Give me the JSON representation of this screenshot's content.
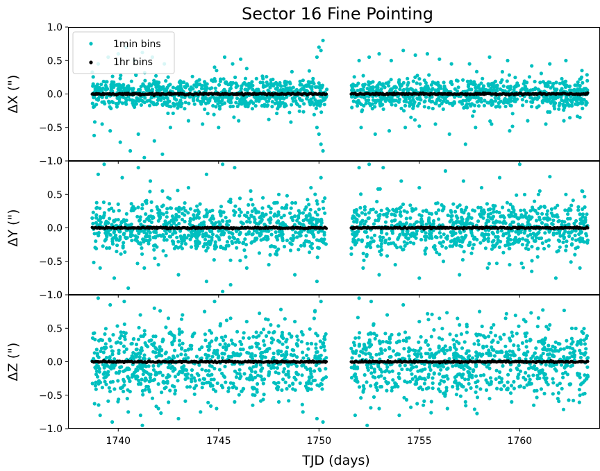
{
  "chart_data": {
    "type": "scatter",
    "title": "Sector 16 Fine Pointing",
    "xlabel": "TJD (days)",
    "xlim": [
      1737.5,
      1764.0
    ],
    "xticks": [
      1740,
      1745,
      1750,
      1755,
      1760
    ],
    "xtick_labels": [
      "1740",
      "1745",
      "1750",
      "1755",
      "1760"
    ],
    "data_gap": [
      1750.4,
      1751.6
    ],
    "x_range_orbit1": [
      1738.7,
      1750.4
    ],
    "x_range_orbit2": [
      1751.6,
      1763.4
    ],
    "legend": {
      "placement": "top-left",
      "entries": [
        {
          "label": "1min bins",
          "color": "#00bfbf"
        },
        {
          "label": "1hr bins",
          "color": "#000000"
        }
      ]
    },
    "colors": {
      "one_min": "#00bfbf",
      "one_hr": "#000000"
    },
    "panels": [
      {
        "ylabel": "ΔX (\")",
        "ylim": [
          -1.0,
          1.0
        ],
        "yticks": [
          -1.0,
          -0.5,
          0.0,
          0.5,
          1.0
        ],
        "ytick_labels": [
          "−1.0",
          "−0.5",
          "0.0",
          "0.5",
          "1.0"
        ],
        "one_min_core_spread": 0.12,
        "one_hr_level": 0.0,
        "outliers": [
          [
            1738.8,
            -0.62
          ],
          [
            1739.2,
            -0.45
          ],
          [
            1739.6,
            -0.55
          ],
          [
            1740.1,
            -0.72
          ],
          [
            1740.6,
            -0.85
          ],
          [
            1741.0,
            -0.6
          ],
          [
            1741.3,
            -0.95
          ],
          [
            1741.8,
            -0.7
          ],
          [
            1742.2,
            -0.9
          ],
          [
            1742.6,
            -0.5
          ],
          [
            1739.0,
            0.45
          ],
          [
            1739.5,
            0.55
          ],
          [
            1740.0,
            0.6
          ],
          [
            1740.4,
            0.7
          ],
          [
            1740.8,
            0.5
          ],
          [
            1741.2,
            0.62
          ],
          [
            1741.7,
            0.55
          ],
          [
            1742.3,
            0.45
          ],
          [
            1744.8,
            0.4
          ],
          [
            1745.3,
            0.55
          ],
          [
            1745.7,
            0.45
          ],
          [
            1746.1,
            0.52
          ],
          [
            1746.4,
            0.38
          ],
          [
            1744.9,
            0.35
          ],
          [
            1743.5,
            -0.4
          ],
          [
            1744.2,
            -0.45
          ],
          [
            1745.0,
            -0.5
          ],
          [
            1746.0,
            -0.4
          ],
          [
            1747.5,
            -0.38
          ],
          [
            1748.6,
            -0.42
          ],
          [
            1749.9,
            0.55
          ],
          [
            1750.0,
            0.7
          ],
          [
            1750.1,
            0.65
          ],
          [
            1750.2,
            0.8
          ],
          [
            1750.0,
            -0.6
          ],
          [
            1750.1,
            -0.75
          ],
          [
            1750.2,
            -0.85
          ],
          [
            1749.9,
            -0.5
          ],
          [
            1752.0,
            0.5
          ],
          [
            1752.5,
            0.55
          ],
          [
            1753.0,
            0.6
          ],
          [
            1753.6,
            0.5
          ],
          [
            1754.2,
            0.65
          ],
          [
            1754.8,
            0.58
          ],
          [
            1755.4,
            0.6
          ],
          [
            1756.0,
            0.52
          ],
          [
            1756.6,
            0.45
          ],
          [
            1757.5,
            0.45
          ],
          [
            1758.5,
            0.55
          ],
          [
            1759.4,
            0.5
          ],
          [
            1760.6,
            0.42
          ],
          [
            1761.5,
            0.45
          ],
          [
            1762.3,
            0.5
          ],
          [
            1763.1,
            0.35
          ],
          [
            1752.1,
            -0.5
          ],
          [
            1752.8,
            -0.6
          ],
          [
            1753.5,
            -0.55
          ],
          [
            1754.3,
            -0.5
          ],
          [
            1755.0,
            -0.48
          ],
          [
            1755.8,
            -0.45
          ],
          [
            1756.5,
            -0.6
          ],
          [
            1757.3,
            -0.75
          ],
          [
            1757.8,
            -0.5
          ],
          [
            1758.6,
            -0.45
          ],
          [
            1759.5,
            -0.55
          ],
          [
            1760.4,
            -0.4
          ],
          [
            1761.3,
            -0.45
          ],
          [
            1762.2,
            -0.4
          ],
          [
            1763.0,
            -0.35
          ]
        ]
      },
      {
        "ylabel": "ΔY (\")",
        "ylim": [
          -1.0,
          1.0
        ],
        "yticks": [
          -1.0,
          -0.5,
          0.0,
          0.5,
          1.0
        ],
        "ytick_labels": [
          "−1.0",
          "−0.5",
          "0.0",
          "0.5",
          "1.0"
        ],
        "one_min_core_spread": 0.2,
        "one_hr_level": 0.0,
        "outliers": [
          [
            1739.0,
            0.8
          ],
          [
            1739.3,
            0.95
          ],
          [
            1740.2,
            0.75
          ],
          [
            1741.0,
            0.9
          ],
          [
            1741.6,
            0.7
          ],
          [
            1742.2,
            0.55
          ],
          [
            1743.5,
            0.6
          ],
          [
            1744.4,
            0.8
          ],
          [
            1745.2,
            0.95
          ],
          [
            1745.8,
            0.9
          ],
          [
            1746.6,
            0.55
          ],
          [
            1748.0,
            0.5
          ],
          [
            1749.6,
            0.6
          ],
          [
            1750.1,
            0.75
          ],
          [
            1739.1,
            -0.6
          ],
          [
            1739.8,
            -0.75
          ],
          [
            1740.5,
            -0.9
          ],
          [
            1741.3,
            -0.6
          ],
          [
            1742.0,
            -0.55
          ],
          [
            1743.0,
            -0.7
          ],
          [
            1744.4,
            -0.8
          ],
          [
            1745.2,
            -0.95
          ],
          [
            1745.6,
            -0.85
          ],
          [
            1746.4,
            -0.6
          ],
          [
            1747.5,
            -0.55
          ],
          [
            1748.8,
            -0.7
          ],
          [
            1749.9,
            -0.8
          ],
          [
            1752.0,
            0.9
          ],
          [
            1752.5,
            0.95
          ],
          [
            1753.2,
            0.9
          ],
          [
            1754.1,
            0.7
          ],
          [
            1755.0,
            0.6
          ],
          [
            1756.3,
            0.85
          ],
          [
            1757.2,
            0.7
          ],
          [
            1758.1,
            0.6
          ],
          [
            1759.0,
            0.75
          ],
          [
            1760.0,
            0.95
          ],
          [
            1761.0,
            0.55
          ],
          [
            1762.3,
            0.5
          ],
          [
            1763.1,
            0.55
          ],
          [
            1752.2,
            -0.6
          ],
          [
            1753.0,
            -0.7
          ],
          [
            1753.8,
            -0.55
          ],
          [
            1755.0,
            -0.75
          ],
          [
            1756.2,
            -0.5
          ],
          [
            1757.0,
            -0.7
          ],
          [
            1758.4,
            -0.6
          ],
          [
            1759.5,
            -0.55
          ],
          [
            1760.6,
            -0.65
          ],
          [
            1761.8,
            -0.75
          ],
          [
            1763.0,
            -0.6
          ]
        ]
      },
      {
        "ylabel": "ΔZ (\")",
        "ylim": [
          -1.0,
          1.0
        ],
        "yticks": [
          -1.0,
          -0.5,
          0.0,
          0.5,
          1.0
        ],
        "ytick_labels": [
          "−1.0",
          "−0.5",
          "0.0",
          "0.5",
          "1.0"
        ],
        "one_min_core_spread": 0.28,
        "one_hr_level": 0.0,
        "outliers": [
          [
            1739.0,
            0.95
          ],
          [
            1739.6,
            0.85
          ],
          [
            1740.3,
            0.9
          ],
          [
            1741.1,
            0.7
          ],
          [
            1741.8,
            0.8
          ],
          [
            1742.5,
            0.65
          ],
          [
            1743.2,
            0.7
          ],
          [
            1744.3,
            0.75
          ],
          [
            1744.8,
            0.9
          ],
          [
            1745.6,
            0.65
          ],
          [
            1746.4,
            0.6
          ],
          [
            1747.6,
            0.55
          ],
          [
            1748.8,
            0.6
          ],
          [
            1749.8,
            0.75
          ],
          [
            1750.1,
            0.9
          ],
          [
            1739.1,
            -0.8
          ],
          [
            1739.7,
            -0.9
          ],
          [
            1740.5,
            -0.75
          ],
          [
            1741.2,
            -0.95
          ],
          [
            1742.0,
            -0.7
          ],
          [
            1743.0,
            -0.85
          ],
          [
            1744.1,
            -0.75
          ],
          [
            1744.9,
            -0.7
          ],
          [
            1745.8,
            -0.6
          ],
          [
            1746.7,
            -0.65
          ],
          [
            1748.0,
            -0.6
          ],
          [
            1749.2,
            -0.75
          ],
          [
            1749.9,
            -0.85
          ],
          [
            1750.2,
            -0.9
          ],
          [
            1752.0,
            0.95
          ],
          [
            1752.6,
            0.9
          ],
          [
            1753.4,
            0.7
          ],
          [
            1754.2,
            0.85
          ],
          [
            1755.0,
            0.6
          ],
          [
            1756.0,
            0.65
          ],
          [
            1757.0,
            0.55
          ],
          [
            1758.0,
            0.75
          ],
          [
            1759.3,
            0.65
          ],
          [
            1760.3,
            0.6
          ],
          [
            1761.5,
            0.55
          ],
          [
            1762.6,
            0.5
          ],
          [
            1763.1,
            0.45
          ],
          [
            1751.8,
            -0.8
          ],
          [
            1752.4,
            -0.95
          ],
          [
            1753.0,
            -0.7
          ],
          [
            1754.0,
            -0.8
          ],
          [
            1755.2,
            -0.65
          ],
          [
            1756.4,
            -0.7
          ],
          [
            1757.3,
            -0.6
          ],
          [
            1758.5,
            -0.55
          ],
          [
            1759.6,
            -0.6
          ],
          [
            1760.7,
            -0.65
          ],
          [
            1761.9,
            -0.55
          ],
          [
            1763.0,
            -0.5
          ]
        ]
      }
    ]
  }
}
